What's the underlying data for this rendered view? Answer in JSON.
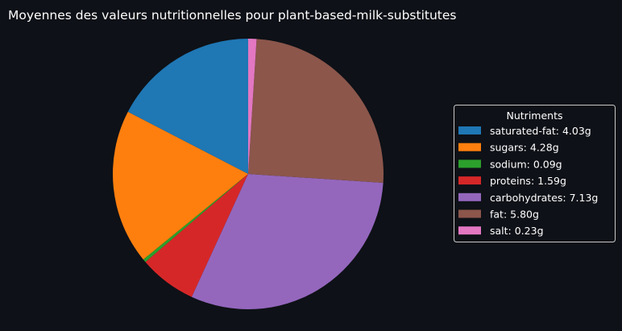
{
  "chart_data": {
    "type": "pie",
    "title": "Moyennes des valeurs nutritionnelles pour plant-based-milk-substitutes",
    "legend": {
      "title": "Nutriments",
      "placement": "right"
    },
    "start_angle_deg": 90,
    "direction": "counterclockwise",
    "series": [
      {
        "name": "saturated-fat",
        "value": 4.03,
        "label": "saturated-fat: 4.03g",
        "color": "#1f77b4"
      },
      {
        "name": "sugars",
        "value": 4.28,
        "label": "sugars: 4.28g",
        "color": "#ff7f0e"
      },
      {
        "name": "sodium",
        "value": 0.09,
        "label": "sodium: 0.09g",
        "color": "#2ca02c"
      },
      {
        "name": "proteins",
        "value": 1.59,
        "label": "proteins: 1.59g",
        "color": "#d62728"
      },
      {
        "name": "carbohydrates",
        "value": 7.13,
        "label": "carbohydrates: 7.13g",
        "color": "#9467bd"
      },
      {
        "name": "fat",
        "value": 5.8,
        "label": "fat: 5.80g",
        "color": "#8c564b"
      },
      {
        "name": "salt",
        "value": 0.23,
        "label": "salt: 0.23g",
        "color": "#e377c2"
      }
    ]
  }
}
